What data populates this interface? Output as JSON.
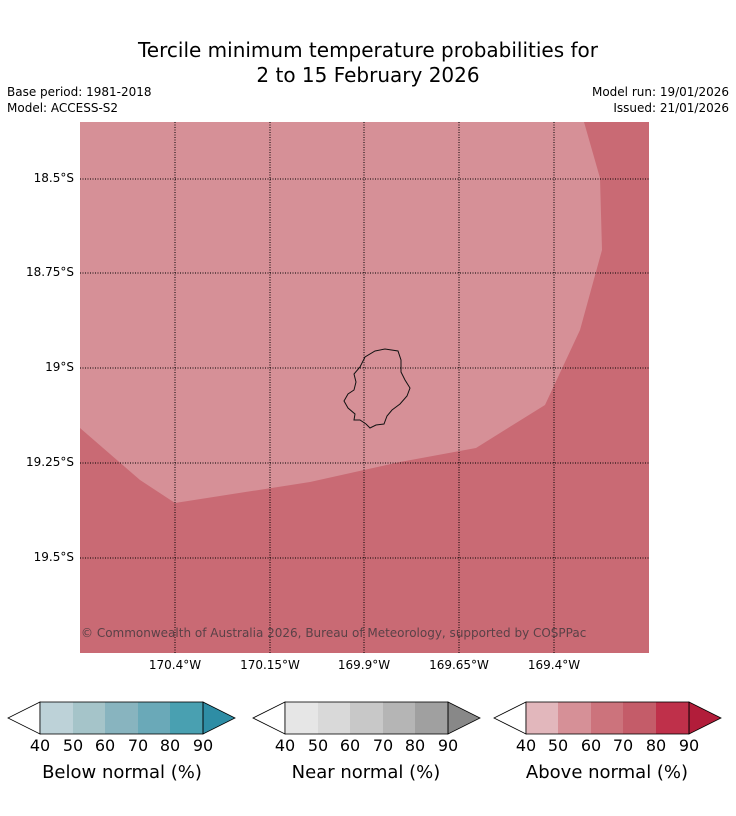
{
  "title": {
    "line1": "Tercile minimum temperature probabilities for",
    "line2": "2 to 15 February 2026"
  },
  "meta": {
    "base_period": "Base period: 1981-2018",
    "model": "Model: ACCESS-S2",
    "model_run": "Model run: 19/01/2026",
    "issued": "Issued: 21/01/2026"
  },
  "map": {
    "lat_labels": [
      "18.5°S",
      "18.75°S",
      "19°S",
      "19.25°S",
      "19.5°S"
    ],
    "lon_labels": [
      "170.4°W",
      "170.15°W",
      "169.9°W",
      "169.65°W",
      "169.4°W"
    ],
    "regions": [
      {
        "category": "above normal",
        "band": "50-60",
        "color": "#d69097"
      },
      {
        "category": "above normal",
        "band": "60-70",
        "color": "#c96a74"
      }
    ],
    "copyright": "© Commonwealth of Australia 2026, Bureau of Meteorology, supported by COSPPac"
  },
  "colorbars": [
    {
      "label": "Below normal (%)",
      "ticks": [
        "40",
        "50",
        "60",
        "70",
        "80",
        "90"
      ],
      "colors": [
        "#ffffff",
        "#bdd2d8",
        "#a5c4c9",
        "#88b4bf",
        "#6aa9b8",
        "#49a0b1",
        "#2e8da5"
      ]
    },
    {
      "label": "Near normal (%)",
      "ticks": [
        "40",
        "50",
        "60",
        "70",
        "80",
        "90"
      ],
      "colors": [
        "#ffffff",
        "#e6e6e6",
        "#d9d9d9",
        "#c8c8c8",
        "#b5b5b5",
        "#a0a0a0",
        "#888888"
      ]
    },
    {
      "label": "Above normal (%)",
      "ticks": [
        "40",
        "50",
        "60",
        "70",
        "80",
        "90"
      ],
      "colors": [
        "#ffffff",
        "#e2b7bc",
        "#d69097",
        "#cc737c",
        "#c45c69",
        "#bf304a",
        "#b21d3a"
      ]
    }
  ]
}
